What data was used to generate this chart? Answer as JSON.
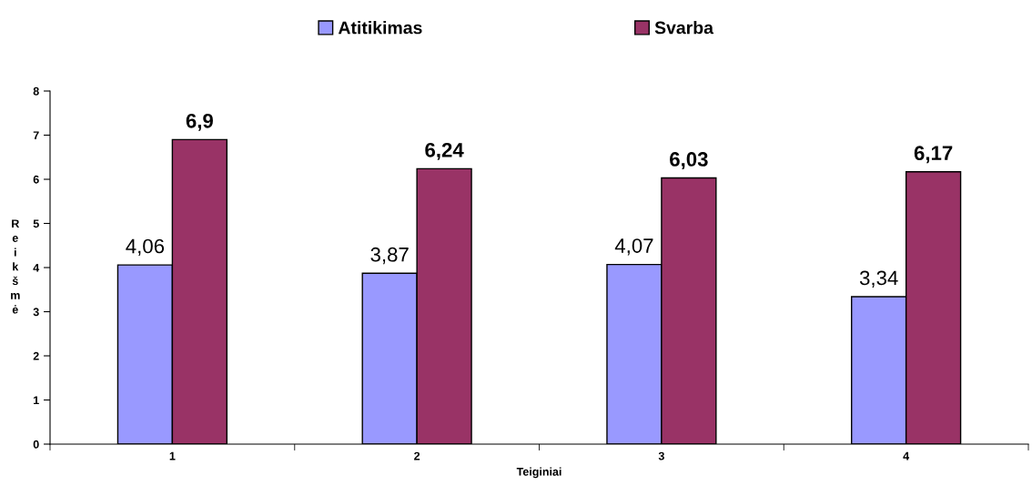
{
  "chart_data": {
    "type": "bar",
    "xlabel": "Teiginiai",
    "ylabel": "Reikšmė",
    "categories": [
      "1",
      "2",
      "3",
      "4"
    ],
    "series": [
      {
        "name": "Atitikimas",
        "color": "#9999ff",
        "values": [
          4.06,
          3.87,
          4.07,
          3.34
        ],
        "value_labels": [
          "4,06",
          "3,87",
          "4,07",
          "3,34"
        ]
      },
      {
        "name": "Svarba",
        "color": "#993366",
        "values": [
          6.9,
          6.24,
          6.03,
          6.17
        ],
        "value_labels": [
          "6,9",
          "6,24",
          "6,03",
          "6,17"
        ]
      }
    ],
    "ylim": [
      0,
      8
    ],
    "yticks": [
      0,
      1,
      2,
      3,
      4,
      5,
      6,
      7,
      8
    ],
    "grid": false,
    "legend": "top"
  }
}
